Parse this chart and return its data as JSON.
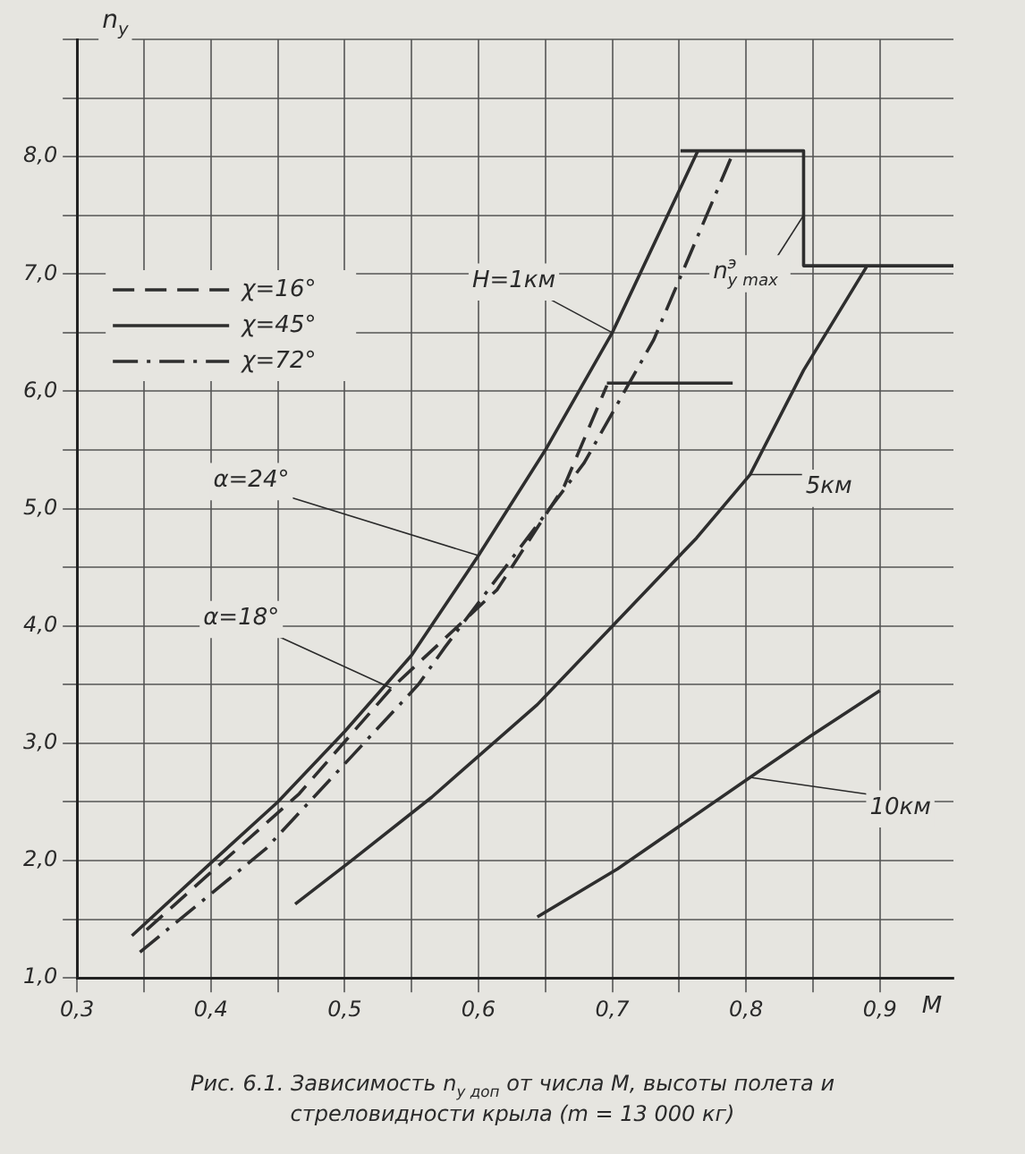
{
  "chart_data": {
    "type": "line",
    "xlabel": "M",
    "ylabel": "n$_{y}$",
    "xlim": [
      0.3,
      0.955
    ],
    "ylim": [
      1,
      9
    ],
    "xticks": [
      {
        "value": 0.3,
        "label": "0,3"
      },
      {
        "value": 0.35,
        "label": null
      },
      {
        "value": 0.4,
        "label": "0,4"
      },
      {
        "value": 0.45,
        "label": null
      },
      {
        "value": 0.5,
        "label": "0,5"
      },
      {
        "value": 0.55,
        "label": null
      },
      {
        "value": 0.6,
        "label": "0,6"
      },
      {
        "value": 0.65,
        "label": null
      },
      {
        "value": 0.7,
        "label": "0,7"
      },
      {
        "value": 0.75,
        "label": null
      },
      {
        "value": 0.8,
        "label": "0,8"
      },
      {
        "value": 0.85,
        "label": null
      },
      {
        "value": 0.9,
        "label": "0,9"
      }
    ],
    "yticks": [
      {
        "value": 1,
        "label": "1,0"
      },
      {
        "value": 1.5,
        "label": null
      },
      {
        "value": 2,
        "label": "2,0"
      },
      {
        "value": 2.5,
        "label": null
      },
      {
        "value": 3,
        "label": "3,0"
      },
      {
        "value": 3.5,
        "label": null
      },
      {
        "value": 4,
        "label": "4,0"
      },
      {
        "value": 4.5,
        "label": null
      },
      {
        "value": 5,
        "label": "5,0"
      },
      {
        "value": 5.5,
        "label": null
      },
      {
        "value": 6,
        "label": "6,0"
      },
      {
        "value": 6.5,
        "label": null
      },
      {
        "value": 7,
        "label": "7,0"
      },
      {
        "value": 7.5,
        "label": null
      },
      {
        "value": 8,
        "label": "8,0"
      },
      {
        "value": 8.5,
        "label": null
      },
      {
        "value": 9,
        "label": null
      }
    ],
    "grid": true,
    "legend": "top left",
    "marker": "none",
    "series": [
      {
        "name": "χ=16°",
        "color": "#2e2e2e",
        "line_style": "dashed",
        "x": [
          0.352,
          0.4,
          0.466,
          0.535,
          0.614,
          0.664,
          0.696
        ],
        "values": [
          1.41,
          1.9,
          2.57,
          3.47,
          4.31,
          5.19,
          6.05
        ]
      },
      {
        "name": "χ=45°",
        "color": "#2e2e2e",
        "line_style": "solid",
        "x": [
          0.341,
          0.4,
          0.45,
          0.5,
          0.55,
          0.6,
          0.65,
          0.7,
          0.764
        ],
        "values": [
          1.36,
          1.98,
          2.5,
          3.1,
          3.75,
          4.6,
          5.5,
          6.5,
          8.05
        ]
      },
      {
        "name": "χ=72°",
        "color": "#2e2e2e",
        "line_style": "dashdot",
        "x": [
          0.347,
          0.441,
          0.555,
          0.575,
          0.679,
          0.731,
          0.791
        ],
        "values": [
          1.22,
          2.1,
          3.5,
          3.82,
          5.39,
          6.44,
          8.05
        ]
      },
      {
        "color": "#2e2e2e",
        "line_style": "solid",
        "x": [
          0.463,
          0.505,
          0.565,
          0.644,
          0.701,
          0.763,
          0.803,
          0.843,
          0.89
        ],
        "values": [
          1.63,
          2.0,
          2.54,
          3.33,
          4.01,
          4.75,
          5.29,
          6.18,
          7.06
        ]
      },
      {
        "color": "#2e2e2e",
        "line_style": "solid",
        "x": [
          0.644,
          0.704,
          0.803,
          0.848,
          0.9
        ],
        "values": [
          1.52,
          1.93,
          2.71,
          3.06,
          3.45
        ]
      },
      {
        "color": "#2e2e2e",
        "line_style": "solid",
        "x": [
          0.751,
          0.843,
          0.843,
          0.955
        ],
        "values": [
          8.05,
          8.05,
          7.07,
          7.07
        ]
      },
      {
        "color": "#2e2e2e",
        "line_style": "solid",
        "x": [
          0.696,
          0.79
        ],
        "values": [
          6.07,
          6.07
        ]
      }
    ],
    "annotations": [
      {
        "text": "H=1км",
        "x": 0.7,
        "y": 6.5
      },
      {
        "text": "5км",
        "x": 0.803,
        "y": 5.29
      },
      {
        "text": "10км",
        "x": 0.803,
        "y": 2.71
      },
      {
        "text": "α=24°",
        "x": 0.6,
        "y": 4.6
      },
      {
        "text": "α=18°",
        "x": 0.535,
        "y": 3.47
      },
      {
        "text": "n$^{э}$$_{y max}$",
        "x": 0.843,
        "y": 7.5
      },
      "Рис. 6.1. Зависимость n$_{y доп}$ от числа М, высоты полета и стреловидности крыла (m = 13 000 кг)"
    ]
  }
}
